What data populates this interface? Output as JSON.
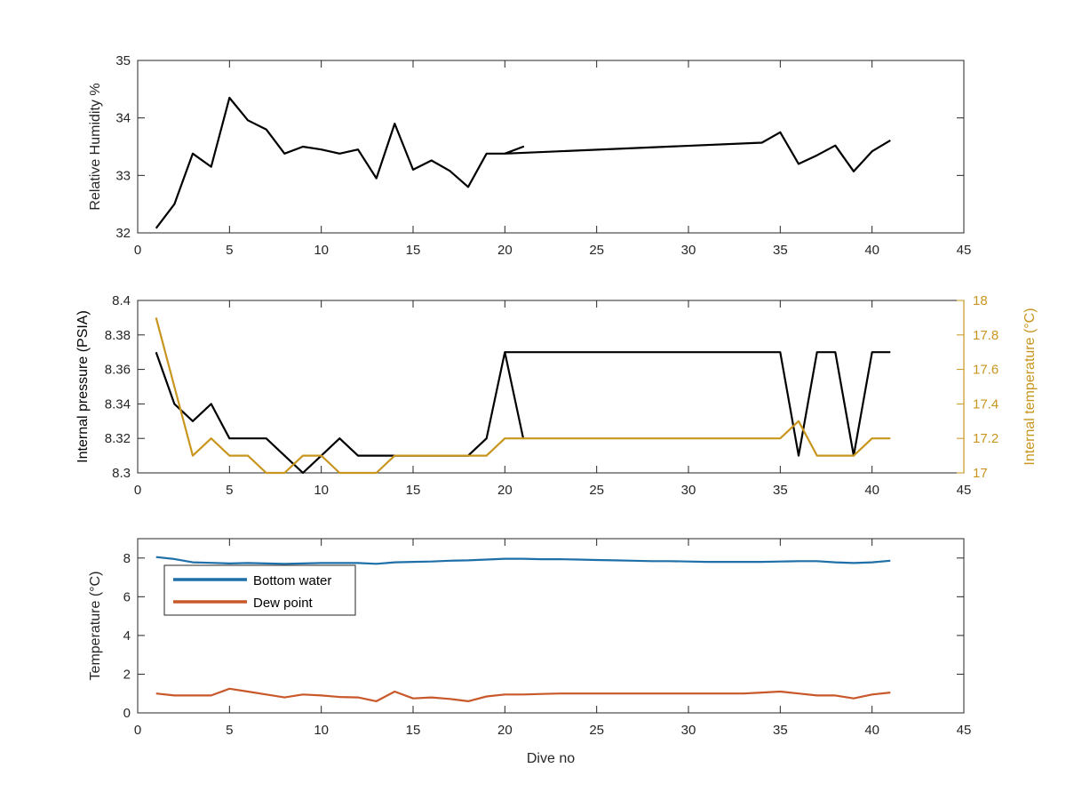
{
  "colors": {
    "axis": "#262626",
    "black": "#000000",
    "gold": "#C8961E",
    "blue": "#1f6fa8",
    "orange": "#c8582a"
  },
  "chart_data": [
    {
      "type": "line",
      "xlim": [
        0,
        45
      ],
      "ylim": [
        32,
        35
      ],
      "xticks": [
        0,
        5,
        10,
        15,
        20,
        25,
        30,
        35,
        40,
        45
      ],
      "yticks": [
        32,
        33,
        34,
        35
      ],
      "ylabel": "Relative Humidity %",
      "xlabel": "",
      "series": [
        {
          "color": "#000000",
          "x": [
            1,
            2,
            3,
            4,
            5,
            6,
            7,
            8,
            9,
            10,
            11,
            12,
            13,
            14,
            15,
            16,
            17,
            18,
            19,
            20,
            21,
            20,
            34,
            35,
            36,
            37,
            38,
            39,
            40,
            41
          ],
          "y": [
            32.08,
            32.5,
            33.38,
            33.15,
            34.35,
            33.96,
            33.8,
            33.38,
            33.5,
            33.45,
            33.38,
            33.45,
            32.95,
            33.9,
            33.1,
            33.26,
            33.08,
            32.8,
            33.38,
            33.38,
            33.5,
            33.38,
            33.57,
            33.75,
            33.2,
            33.35,
            33.52,
            33.07,
            33.42,
            33.61
          ]
        }
      ]
    },
    {
      "type": "line",
      "xlim": [
        0,
        45
      ],
      "ylim": [
        8.3,
        8.4
      ],
      "y2lim": [
        17,
        18
      ],
      "xticks": [
        0,
        5,
        10,
        15,
        20,
        25,
        30,
        35,
        40,
        45
      ],
      "yticks": [
        8.3,
        8.32,
        8.34,
        8.36,
        8.38,
        8.4
      ],
      "ytick_labels": [
        "8.3",
        "8.32",
        "8.34",
        "8.36",
        "8.38",
        "8.4"
      ],
      "y2ticks": [
        17,
        17.2,
        17.4,
        17.6,
        17.8,
        18
      ],
      "y2tick_labels": [
        "17",
        "17.2",
        "17.4",
        "17.6",
        "17.8",
        "18"
      ],
      "ylabel": "Internal pressure (PSIA)",
      "y2label": "Internal temperature (°C)",
      "series": [
        {
          "axis": "left",
          "color": "#000000",
          "x": [
            1,
            2,
            3,
            4,
            5,
            6,
            7,
            8,
            9,
            10,
            11,
            12,
            13,
            14,
            15,
            16,
            17,
            18,
            19,
            20,
            21,
            20,
            35,
            36,
            37,
            38,
            39,
            40,
            41
          ],
          "y": [
            8.37,
            8.34,
            8.33,
            8.34,
            8.32,
            8.32,
            8.32,
            8.31,
            8.3,
            8.31,
            8.32,
            8.31,
            8.31,
            8.31,
            8.31,
            8.31,
            8.31,
            8.31,
            8.32,
            8.37,
            8.32,
            8.37,
            8.37,
            8.31,
            8.37,
            8.37,
            8.31,
            8.37,
            8.37
          ]
        },
        {
          "axis": "right",
          "color": "#C8961E",
          "x": [
            1,
            2,
            3,
            4,
            5,
            6,
            7,
            8,
            9,
            10,
            11,
            12,
            13,
            14,
            15,
            16,
            17,
            18,
            19,
            20,
            21,
            22,
            35,
            36,
            37,
            38,
            39,
            40,
            41
          ],
          "y": [
            17.9,
            17.5,
            17.1,
            17.2,
            17.1,
            17.1,
            17.0,
            17.0,
            17.1,
            17.1,
            17.0,
            17.0,
            17.0,
            17.1,
            17.1,
            17.1,
            17.1,
            17.1,
            17.1,
            17.2,
            17.2,
            17.2,
            17.2,
            17.3,
            17.1,
            17.1,
            17.1,
            17.2,
            17.2
          ]
        }
      ]
    },
    {
      "type": "line",
      "xlim": [
        0,
        45
      ],
      "ylim": [
        0,
        9
      ],
      "xticks": [
        0,
        5,
        10,
        15,
        20,
        25,
        30,
        35,
        40,
        45
      ],
      "yticks": [
        0,
        2,
        4,
        6,
        8
      ],
      "ylabel": "Temperature (°C)",
      "xlabel": "Dive no",
      "legend": {
        "placement": "upper-left",
        "entries": [
          "Bottom water",
          "Dew point"
        ]
      },
      "series": [
        {
          "name": "Bottom water",
          "color": "#1f6fa8",
          "x": [
            1,
            2,
            3,
            4,
            5,
            6,
            7,
            8,
            9,
            10,
            11,
            12,
            13,
            14,
            15,
            16,
            17,
            18,
            19,
            20,
            21,
            22,
            23,
            24,
            25,
            26,
            27,
            28,
            29,
            30,
            31,
            32,
            33,
            34,
            35,
            36,
            37,
            38,
            39,
            40,
            41
          ],
          "y": [
            8.05,
            7.95,
            7.78,
            7.75,
            7.72,
            7.74,
            7.72,
            7.7,
            7.72,
            7.74,
            7.74,
            7.74,
            7.7,
            7.78,
            7.8,
            7.82,
            7.86,
            7.88,
            7.92,
            7.96,
            7.96,
            7.94,
            7.94,
            7.92,
            7.9,
            7.88,
            7.86,
            7.84,
            7.84,
            7.82,
            7.8,
            7.8,
            7.8,
            7.8,
            7.82,
            7.84,
            7.84,
            7.78,
            7.74,
            7.78,
            7.86
          ]
        },
        {
          "name": "Dew point",
          "color": "#c8582a",
          "x": [
            1,
            2,
            3,
            4,
            5,
            6,
            7,
            8,
            9,
            10,
            11,
            12,
            13,
            14,
            15,
            16,
            17,
            18,
            19,
            20,
            21,
            22,
            23,
            24,
            25,
            26,
            27,
            28,
            29,
            30,
            31,
            32,
            33,
            34,
            35,
            36,
            37,
            38,
            39,
            40,
            41
          ],
          "y": [
            1.0,
            0.9,
            0.9,
            0.9,
            1.25,
            1.1,
            0.95,
            0.8,
            0.95,
            0.9,
            0.82,
            0.8,
            0.6,
            1.1,
            0.75,
            0.8,
            0.72,
            0.6,
            0.85,
            0.95,
            0.95,
            0.98,
            1.0,
            1.0,
            1.0,
            1.0,
            1.0,
            1.0,
            1.0,
            1.0,
            1.0,
            1.0,
            1.0,
            1.05,
            1.1,
            1.0,
            0.9,
            0.9,
            0.75,
            0.95,
            1.05
          ]
        }
      ]
    }
  ]
}
